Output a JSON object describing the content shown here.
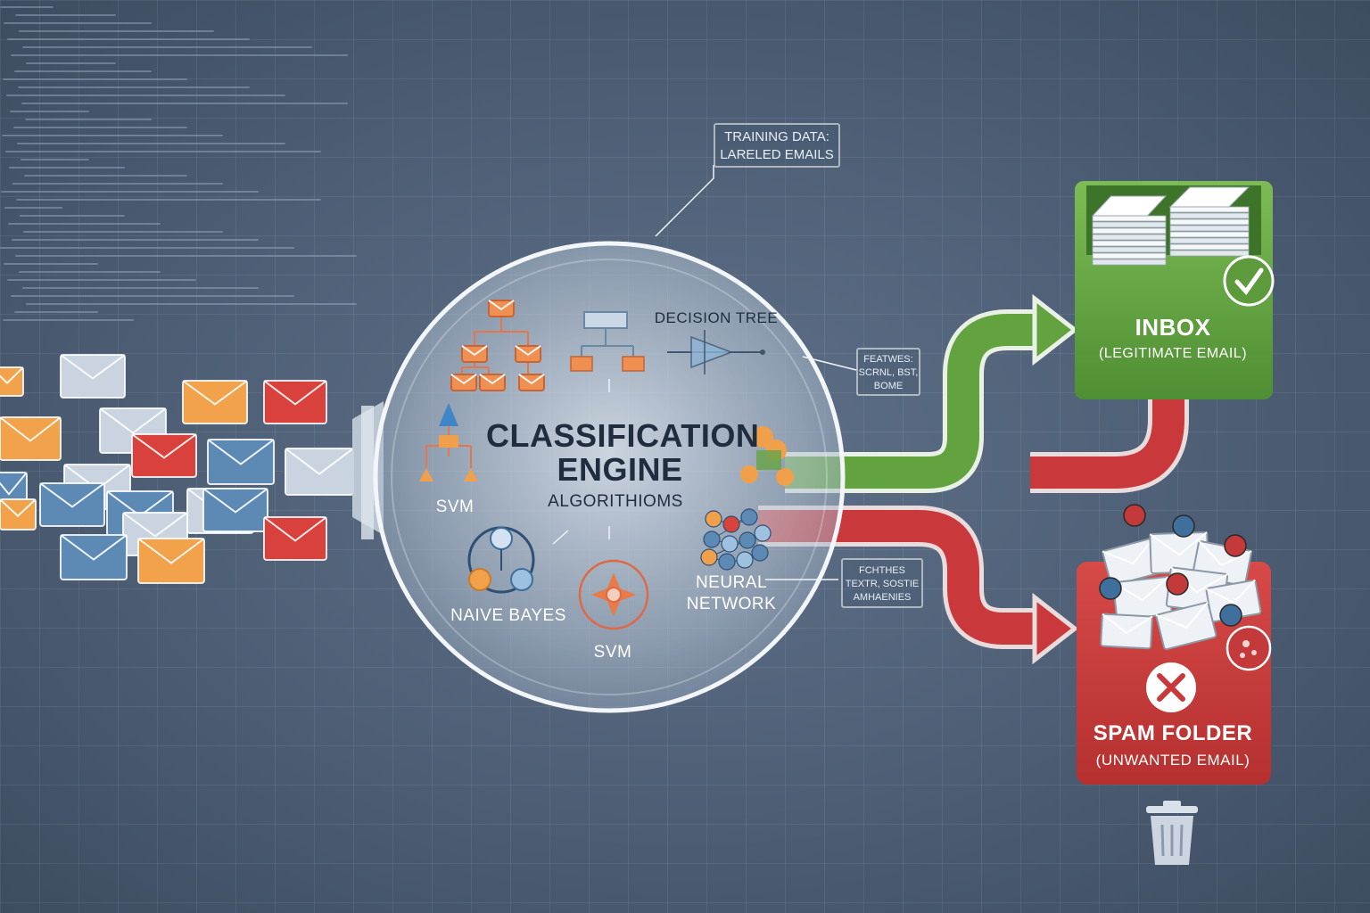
{
  "engine": {
    "title_line1": "CLASSIFICATION",
    "title_line2": "ENGINE",
    "subtitle": "ALGORITHIOMS"
  },
  "algorithms": {
    "decision_tree": "DECISION TREE",
    "svm_left": "SVM",
    "naive_bayes": "NAIVE BAYES",
    "svm_bottom": "SVM",
    "neural_network_line1": "NEURAL",
    "neural_network_line2": "NETWORK"
  },
  "callouts": {
    "training_line1": "TRAINING DATA:",
    "training_line2": "LARELED EMAILS",
    "features_top_line1": "FEATWES:",
    "features_top_line2": "SCRNL, BST,",
    "features_top_line3": "BOME",
    "features_bottom_line1": "FCHTHES",
    "features_bottom_line2": "TEXTR, SOSTIE",
    "features_bottom_line3": "AMHAENIES"
  },
  "inbox": {
    "title": "INBOX",
    "subtitle": "(LEGITIMATE EMAIL)"
  },
  "spam": {
    "title": "SPAM FOLDER",
    "subtitle": "(UNWANTED EMAIL)"
  },
  "icons": {
    "check": "check-icon",
    "cross": "cross-icon",
    "bin": "trash-bin-icon",
    "virus": "virus-icon"
  },
  "colors": {
    "green": "#6cab46",
    "red": "#c9393c",
    "orange": "#f1a24a",
    "blue_env": "#5d8ab4",
    "light_env": "#c9d4e0",
    "red_env": "#d8413c"
  }
}
